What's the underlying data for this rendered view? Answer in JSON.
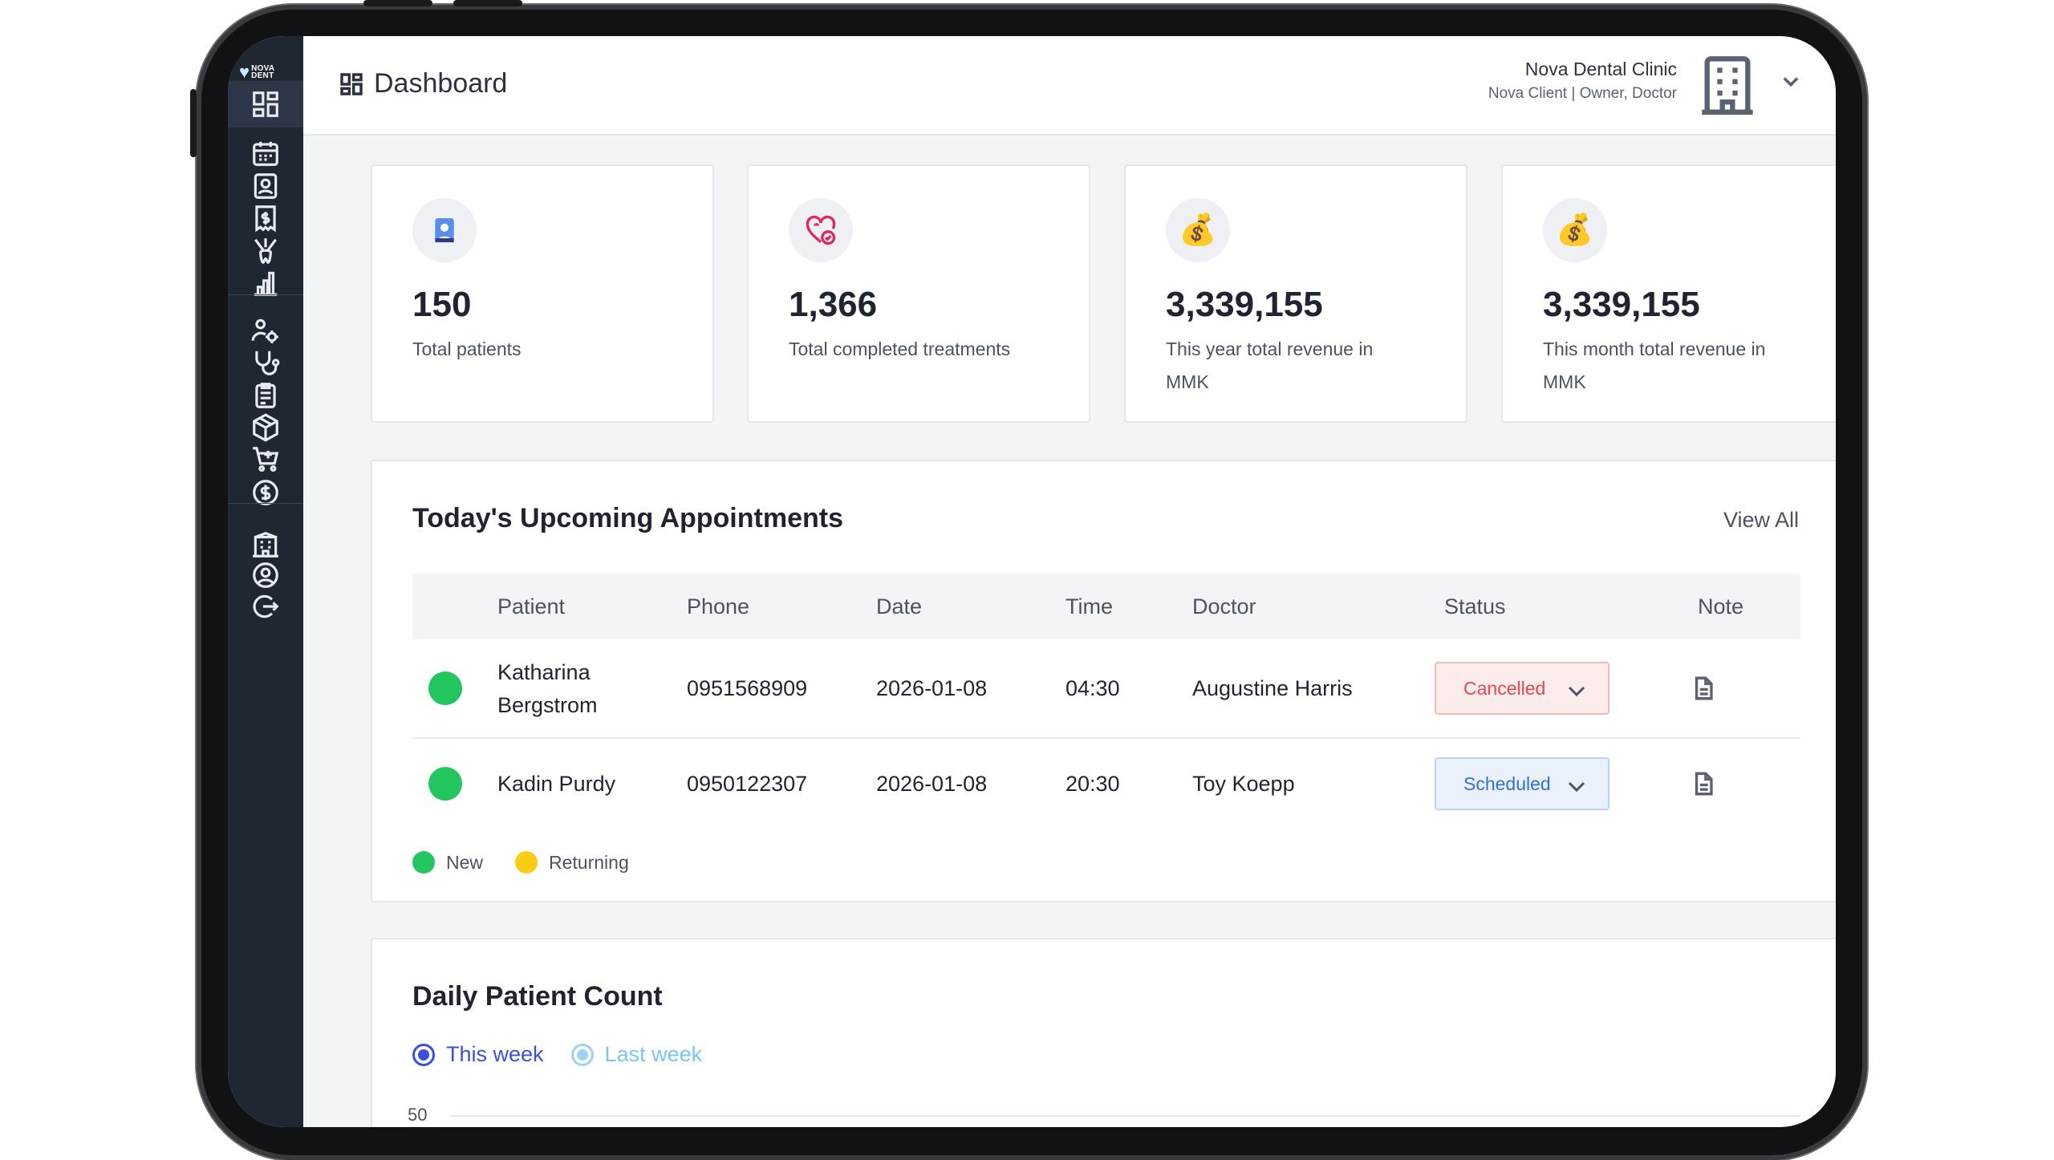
{
  "brand": {
    "logo_line1": "NOVA",
    "logo_line2": "DENT"
  },
  "sidebar": {
    "items": [
      {
        "id": "dashboard",
        "icon": "dashboard-icon",
        "active": true
      },
      {
        "id": "calendar",
        "icon": "calendar-icon"
      },
      {
        "id": "patients",
        "icon": "patient-card-icon"
      },
      {
        "id": "invoices",
        "icon": "invoice-icon"
      },
      {
        "id": "treatments",
        "icon": "tooth-tools-icon"
      },
      {
        "id": "reports",
        "icon": "bar-chart-icon"
      },
      {
        "id": "staff",
        "icon": "users-settings-icon"
      },
      {
        "id": "doctors",
        "icon": "stethoscope-icon"
      },
      {
        "id": "records",
        "icon": "clipboard-icon"
      },
      {
        "id": "inventory",
        "icon": "box-icon"
      },
      {
        "id": "purchases",
        "icon": "cart-icon"
      },
      {
        "id": "payments",
        "icon": "dollar-circle-icon"
      },
      {
        "id": "clinic",
        "icon": "building-icon"
      },
      {
        "id": "profile",
        "icon": "user-circle-icon"
      },
      {
        "id": "logout",
        "icon": "logout-icon"
      }
    ]
  },
  "header": {
    "title": "Dashboard",
    "clinic_name": "Nova Dental Clinic",
    "clinic_role": "Nova Client | Owner, Doctor"
  },
  "stats": [
    {
      "icon": "patient-icon",
      "value": "150",
      "label": "Total patients"
    },
    {
      "icon": "tooth-heart-icon",
      "value": "1,366",
      "label": "Total completed treatments"
    },
    {
      "icon": "money-bag-icon",
      "value": "3,339,155",
      "label": "This year total revenue in MMK"
    },
    {
      "icon": "money-bag-icon",
      "value": "3,339,155",
      "label": "This month total revenue in MMK"
    }
  ],
  "appointments": {
    "title": "Today's Upcoming Appointments",
    "view_all": "View All",
    "columns": [
      "Patient",
      "Phone",
      "Date",
      "Time",
      "Doctor",
      "Status",
      "Note"
    ],
    "rows": [
      {
        "type": "New",
        "patient": "Katharina Bergstrom",
        "phone": "0951568909",
        "date": "2026-01-08",
        "time": "04:30",
        "doctor": "Augustine Harris",
        "status": "Cancelled"
      },
      {
        "type": "New",
        "patient": "Kadin Purdy",
        "phone": "0950122307",
        "date": "2026-01-08",
        "time": "20:30",
        "doctor": "Toy Koepp",
        "status": "Scheduled"
      }
    ],
    "legend": [
      {
        "label": "New",
        "color": "#22c55e"
      },
      {
        "label": "Returning",
        "color": "#facc15"
      }
    ]
  },
  "daily": {
    "title": "Daily Patient Count",
    "options": [
      {
        "label": "This week",
        "selected": true,
        "color": "#3b4fd8"
      },
      {
        "label": "Last week",
        "selected": false,
        "color": "#7cc6ee"
      }
    ],
    "y_tick_top": "50"
  },
  "colors": {
    "sidebar": "#1f2733",
    "new": "#22c55e",
    "returning": "#facc15",
    "cancelled": "#e5484d",
    "scheduled": "#2f6fe0"
  }
}
